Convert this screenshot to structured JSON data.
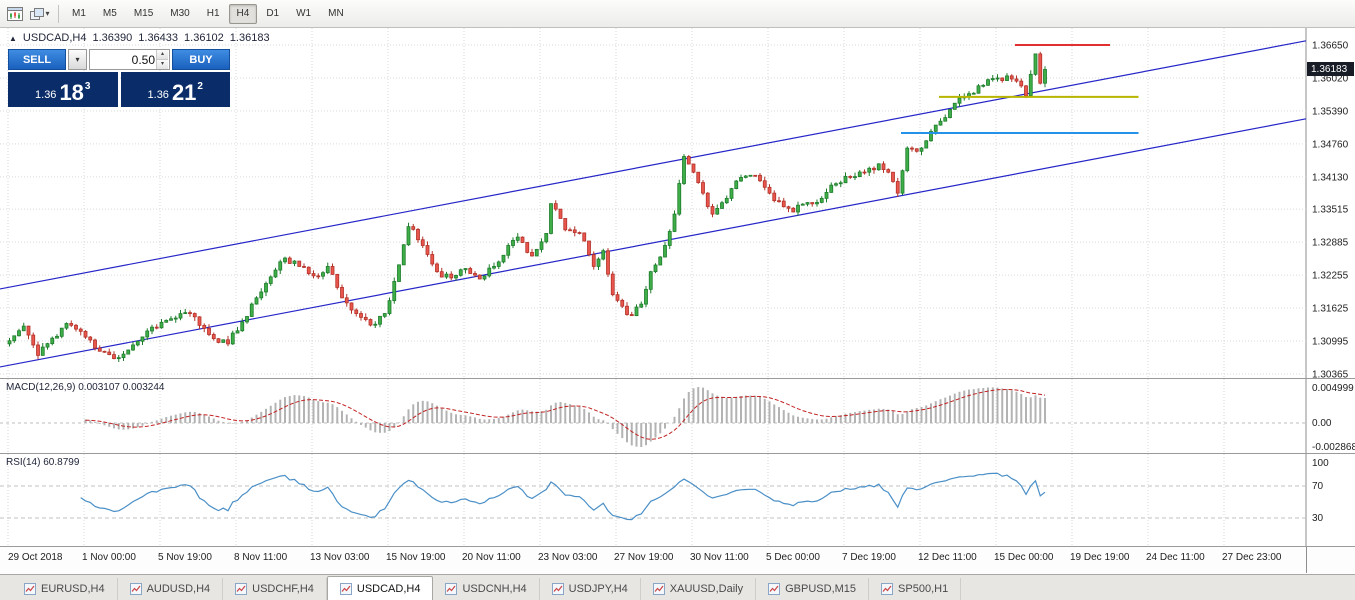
{
  "toolbar": {
    "timeframes": [
      "M1",
      "M5",
      "M15",
      "M30",
      "H1",
      "H4",
      "D1",
      "W1",
      "MN"
    ],
    "active_timeframe": "H4"
  },
  "icons": {
    "caret_down": "▾",
    "spin_up": "▴",
    "spin_down": "▾",
    "symbol_marker": "▲"
  },
  "chart": {
    "symbol": "USDCAD,H4",
    "open": "1.36390",
    "high": "1.36433",
    "low": "1.36102",
    "close": "1.36183",
    "current_price": "1.36183"
  },
  "one_click": {
    "sell_label": "SELL",
    "buy_label": "BUY",
    "volume": "0.50",
    "sell_price": {
      "prefix": "1.36",
      "big": "18",
      "sup": "3"
    },
    "buy_price": {
      "prefix": "1.36",
      "big": "21",
      "sup": "2"
    }
  },
  "indicators": {
    "macd_label": "MACD(12,26,9) 0.003107 0.003244",
    "rsi_label": "RSI(14) 60.8799"
  },
  "tabs": {
    "active": "USDCAD,H4",
    "items": [
      "EURUSD,H4",
      "AUDUSD,H4",
      "USDCHF,H4",
      "USDCAD,H4",
      "USDCNH,H4",
      "USDJPY,H4",
      "XAUUSD,Daily",
      "GBPUSD,M15",
      "SP500,H1"
    ]
  },
  "chart_data": {
    "type": "candlestick",
    "symbol": "USDCAD",
    "timeframe": "H4",
    "title": "USDCAD,H4",
    "x_labels": [
      "29 Oct 2018",
      "1 Nov 00:00",
      "5 Nov 19:00",
      "8 Nov 11:00",
      "13 Nov 03:00",
      "15 Nov 19:00",
      "20 Nov 11:00",
      "23 Nov 03:00",
      "27 Nov 19:00",
      "30 Nov 11:00",
      "5 Dec 00:00",
      "7 Dec 19:00",
      "12 Dec 11:00",
      "15 Dec 00:00",
      "19 Dec 19:00",
      "24 Dec 11:00",
      "27 Dec 23:00"
    ],
    "y_axis_ticks": [
      "1.36650",
      "1.36020",
      "1.35390",
      "1.34760",
      "1.34130",
      "1.33515",
      "1.32885",
      "1.32255",
      "1.31625",
      "1.30995",
      "1.30365"
    ],
    "ohlc_last": {
      "open": 1.3639,
      "high": 1.36433,
      "low": 1.36102,
      "close": 1.36183
    },
    "candle_count": 219,
    "price_path_waypoints": [
      [
        0,
        1.31
      ],
      [
        3,
        1.3128
      ],
      [
        6,
        1.3072
      ],
      [
        9,
        1.3105
      ],
      [
        12,
        1.3133
      ],
      [
        15,
        1.3118
      ],
      [
        18,
        1.3086
      ],
      [
        22,
        1.3066
      ],
      [
        26,
        1.3092
      ],
      [
        30,
        1.3126
      ],
      [
        34,
        1.3142
      ],
      [
        38,
        1.3152
      ],
      [
        42,
        1.3112
      ],
      [
        46,
        1.3094
      ],
      [
        49,
        1.3136
      ],
      [
        52,
        1.3182
      ],
      [
        55,
        1.3222
      ],
      [
        58,
        1.3258
      ],
      [
        61,
        1.3242
      ],
      [
        64,
        1.3224
      ],
      [
        67,
        1.3242
      ],
      [
        70,
        1.3182
      ],
      [
        73,
        1.3152
      ],
      [
        76,
        1.313
      ],
      [
        79,
        1.3152
      ],
      [
        82,
        1.3245
      ],
      [
        84,
        1.3318
      ],
      [
        87,
        1.3282
      ],
      [
        90,
        1.3232
      ],
      [
        93,
        1.322
      ],
      [
        96,
        1.3238
      ],
      [
        99,
        1.3218
      ],
      [
        102,
        1.3242
      ],
      [
        105,
        1.3282
      ],
      [
        107,
        1.3298
      ],
      [
        110,
        1.3262
      ],
      [
        113,
        1.3305
      ],
      [
        114,
        1.3362
      ],
      [
        117,
        1.3312
      ],
      [
        120,
        1.3306
      ],
      [
        123,
        1.3242
      ],
      [
        125,
        1.3272
      ],
      [
        127,
        1.3188
      ],
      [
        129,
        1.3166
      ],
      [
        131,
        1.3148
      ],
      [
        133,
        1.317
      ],
      [
        135,
        1.3232
      ],
      [
        137,
        1.326
      ],
      [
        140,
        1.3342
      ],
      [
        142,
        1.3452
      ],
      [
        144,
        1.3422
      ],
      [
        146,
        1.3382
      ],
      [
        148,
        1.3342
      ],
      [
        151,
        1.3372
      ],
      [
        154,
        1.3412
      ],
      [
        157,
        1.3416
      ],
      [
        160,
        1.3382
      ],
      [
        163,
        1.3356
      ],
      [
        165,
        1.3346
      ],
      [
        168,
        1.3364
      ],
      [
        171,
        1.3372
      ],
      [
        174,
        1.34
      ],
      [
        177,
        1.3412
      ],
      [
        180,
        1.3422
      ],
      [
        183,
        1.3438
      ],
      [
        185,
        1.3422
      ],
      [
        187,
        1.3382
      ],
      [
        189,
        1.3468
      ],
      [
        191,
        1.3462
      ],
      [
        193,
        1.3482
      ],
      [
        195,
        1.3512
      ],
      [
        198,
        1.3542
      ],
      [
        200,
        1.3564
      ],
      [
        202,
        1.3572
      ],
      [
        205,
        1.3588
      ],
      [
        208,
        1.3602
      ],
      [
        210,
        1.3606
      ],
      [
        212,
        1.3596
      ],
      [
        214,
        1.3568
      ],
      [
        216,
        1.3648
      ],
      [
        217,
        1.3592
      ],
      [
        218,
        1.36183
      ]
    ],
    "synthesis": {
      "seed": 11,
      "close_noise": 0.0007,
      "wick_noise": 0.0008
    },
    "trend_channel": {
      "color": "#2626c9",
      "upper": {
        "price_left": 1.3199,
        "price_right": 1.3673
      },
      "lower": {
        "price_left": 1.305,
        "price_right": 1.3524
      }
    },
    "horizontal_lines": [
      {
        "name": "resistance-red",
        "color": "#e23030",
        "price": 1.3665,
        "from_candle": 212,
        "to_candle": 232
      },
      {
        "name": "level-yellow",
        "color": "#b8b400",
        "price": 1.3566,
        "from_candle": 196,
        "to_candle": 238
      },
      {
        "name": "level-blue",
        "color": "#2492e8",
        "price": 1.3497,
        "from_candle": 188,
        "to_candle": 238
      }
    ],
    "candle_colors": {
      "up_fill": "#3fae49",
      "up_stroke": "#1d7c2b",
      "down_fill": "#e8564d",
      "down_stroke": "#b23228"
    },
    "indicators": [
      {
        "name": "MACD",
        "params": [
          12,
          26,
          9
        ],
        "current_values": [
          0.003107,
          0.003244
        ],
        "axis_ticks": [
          "0.004999",
          "0.00",
          "-0.002868"
        ],
        "histogram_color": "#b3b3b3",
        "signal_color": "#c22222"
      },
      {
        "name": "RSI",
        "params": [
          14
        ],
        "current_value": 60.8799,
        "levels": [
          70,
          30
        ],
        "axis_ticks": [
          "100",
          "70",
          "30"
        ],
        "line_color": "#4a8fc7"
      }
    ]
  }
}
